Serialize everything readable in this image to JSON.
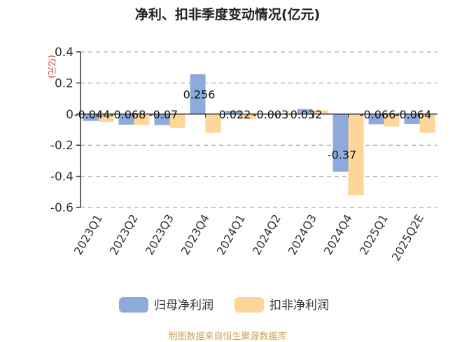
{
  "chart_data": {
    "type": "bar",
    "title": "净利、扣非季度变动情况(亿元)",
    "ylabel": "(亿元)",
    "ylim": [
      -0.6,
      0.4
    ],
    "yticks": [
      "0.4",
      "0.2",
      "0",
      "-0.2",
      "-0.4",
      "-0.6"
    ],
    "ytick_values": [
      0.4,
      0.2,
      0,
      -0.2,
      -0.4,
      -0.6
    ],
    "grid": true,
    "legend_position": "bottom",
    "categories": [
      "2023Q1",
      "2023Q2",
      "2023Q3",
      "2023Q4",
      "2024Q1",
      "2024Q2",
      "2024Q3",
      "2024Q4",
      "2025Q1",
      "2025Q2E"
    ],
    "series": [
      {
        "name": "归母净利润",
        "color": "#8eaadb",
        "values": [
          -0.044,
          -0.068,
          -0.07,
          0.256,
          0.022,
          -0.003,
          0.032,
          -0.37,
          -0.066,
          -0.064
        ],
        "labels": [
          "-0.044",
          "-0.068",
          "-0.07",
          "0.256",
          "0.022",
          "-0.003",
          "0.032",
          "-0.37",
          "-0.066",
          "-0.064"
        ]
      },
      {
        "name": "扣非净利润",
        "color": "#ffd699",
        "values": [
          -0.05,
          -0.07,
          -0.09,
          -0.12,
          -0.03,
          -0.005,
          0.025,
          -0.52,
          -0.08,
          -0.12
        ],
        "labels": []
      }
    ]
  },
  "footer": {
    "source": "制图数据来自恒生聚源数据库"
  }
}
